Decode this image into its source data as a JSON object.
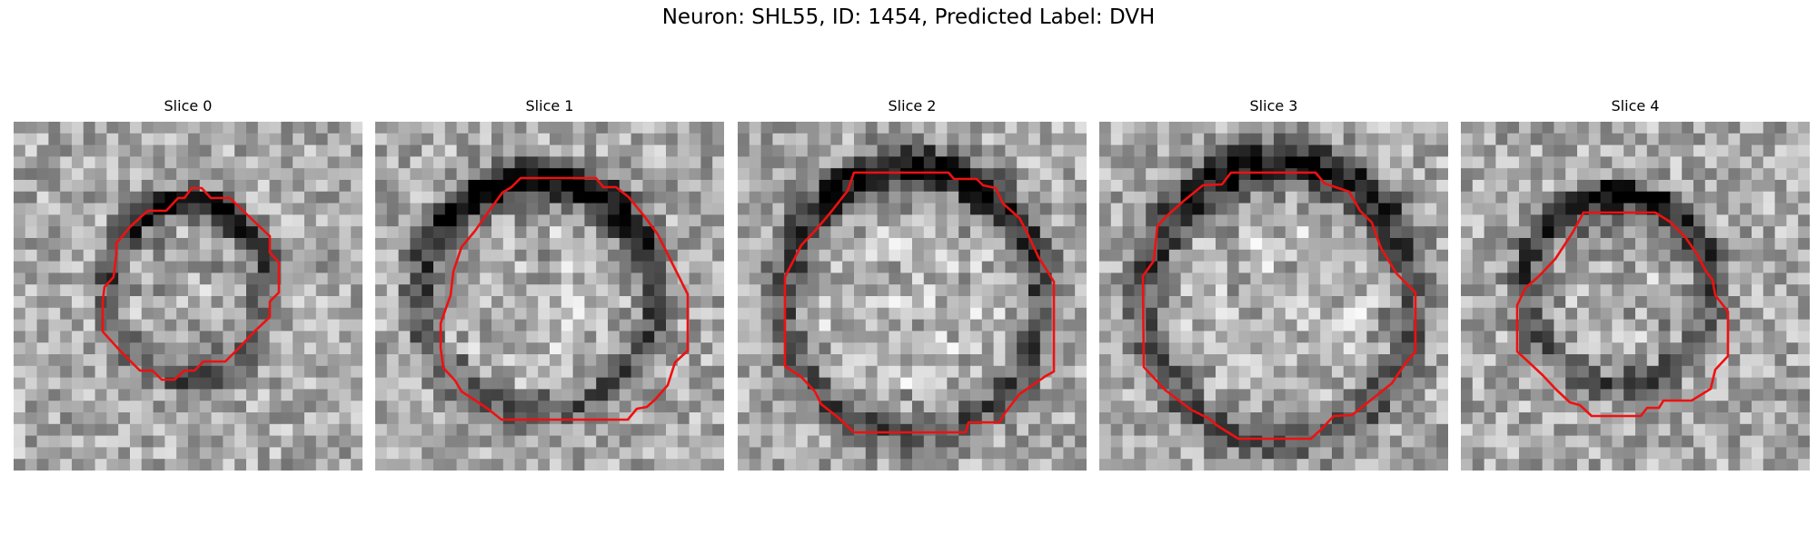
{
  "figure": {
    "title": "Neuron: SHL55, ID: 1454, Predicted Label: DVH"
  },
  "panels": [
    {
      "title": "Slice 0"
    },
    {
      "title": "Slice 1"
    },
    {
      "title": "Slice 2"
    },
    {
      "title": "Slice 3"
    },
    {
      "title": "Slice 4"
    }
  ],
  "style": {
    "contour_color": "#ee1111",
    "colormap": "grayscale"
  }
}
